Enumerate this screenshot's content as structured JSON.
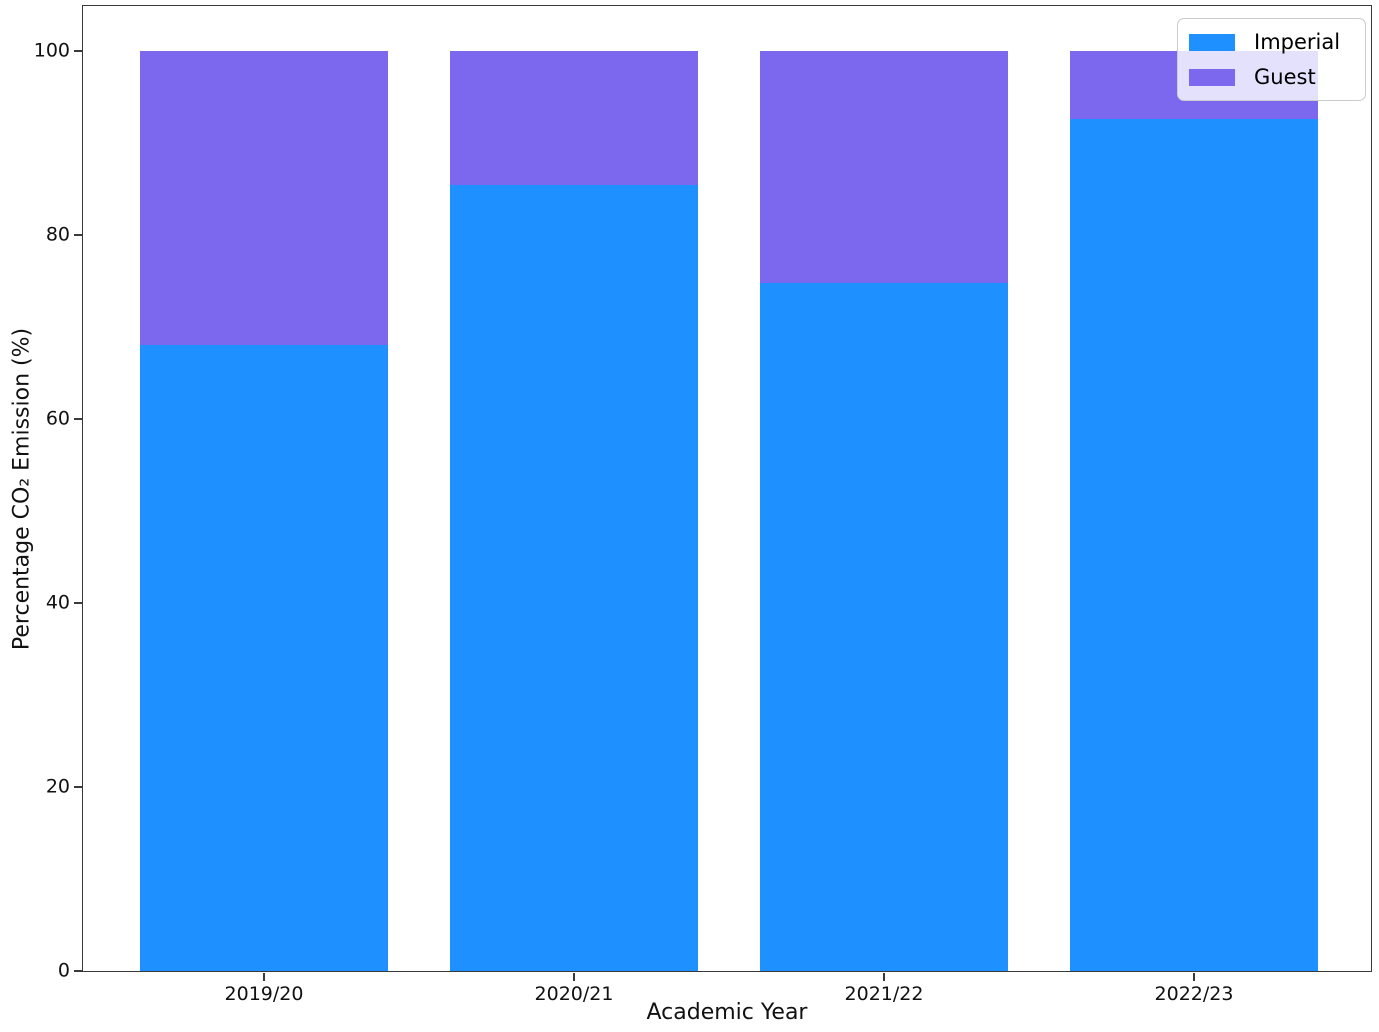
{
  "figure": {
    "background_color": "#ffffff",
    "spine_color": "#3a3a3a"
  },
  "chart_data": {
    "type": "bar",
    "stacked": true,
    "title": "",
    "xlabel": "Academic Year",
    "ylabel": "Percentage CO₂ Emission (%)",
    "categories": [
      "2019/20",
      "2020/21",
      "2021/22",
      "2022/23"
    ],
    "series": [
      {
        "name": "Imperial",
        "color": "#1E90FF",
        "values": [
          68.0,
          85.4,
          74.8,
          92.6
        ]
      },
      {
        "name": "Guest",
        "color": "#7B68EE",
        "values": [
          32.0,
          14.6,
          25.2,
          7.4
        ]
      }
    ],
    "ylim": [
      0,
      105
    ],
    "yticks": [
      0,
      20,
      40,
      60,
      80,
      100
    ],
    "grid": false,
    "legend_position": "upper right"
  }
}
